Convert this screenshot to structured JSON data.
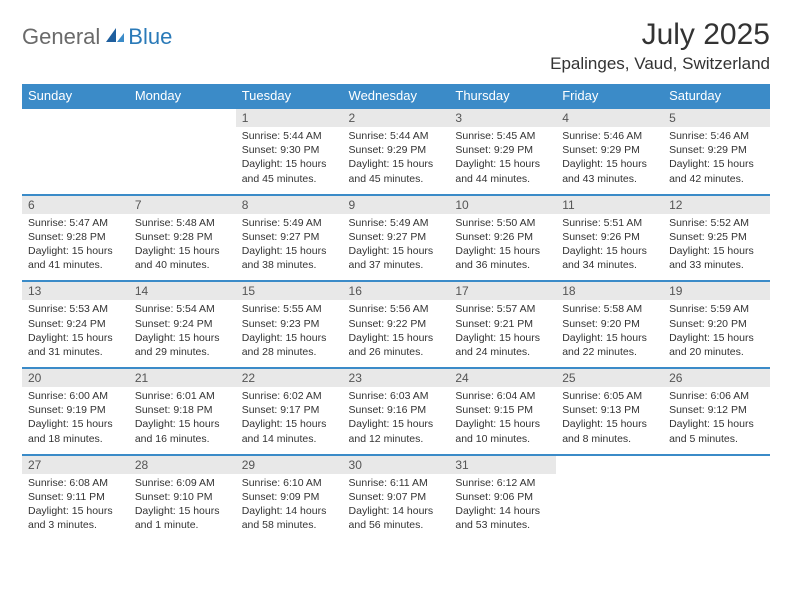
{
  "brand": {
    "part1": "General",
    "part2": "Blue"
  },
  "title": "July 2025",
  "location": "Epalinges, Vaud, Switzerland",
  "colors": {
    "header_bg": "#3b8bc8",
    "header_text": "#ffffff",
    "daynum_bg": "#e8e8e8",
    "border": "#3b8bc8",
    "brand_gray": "#6a6a6a",
    "brand_blue": "#2a7ab8"
  },
  "weekdays": [
    "Sunday",
    "Monday",
    "Tuesday",
    "Wednesday",
    "Thursday",
    "Friday",
    "Saturday"
  ],
  "weeks": [
    [
      null,
      null,
      {
        "n": "1",
        "sr": "5:44 AM",
        "ss": "9:30 PM",
        "dl": "15 hours and 45 minutes."
      },
      {
        "n": "2",
        "sr": "5:44 AM",
        "ss": "9:29 PM",
        "dl": "15 hours and 45 minutes."
      },
      {
        "n": "3",
        "sr": "5:45 AM",
        "ss": "9:29 PM",
        "dl": "15 hours and 44 minutes."
      },
      {
        "n": "4",
        "sr": "5:46 AM",
        "ss": "9:29 PM",
        "dl": "15 hours and 43 minutes."
      },
      {
        "n": "5",
        "sr": "5:46 AM",
        "ss": "9:29 PM",
        "dl": "15 hours and 42 minutes."
      }
    ],
    [
      {
        "n": "6",
        "sr": "5:47 AM",
        "ss": "9:28 PM",
        "dl": "15 hours and 41 minutes."
      },
      {
        "n": "7",
        "sr": "5:48 AM",
        "ss": "9:28 PM",
        "dl": "15 hours and 40 minutes."
      },
      {
        "n": "8",
        "sr": "5:49 AM",
        "ss": "9:27 PM",
        "dl": "15 hours and 38 minutes."
      },
      {
        "n": "9",
        "sr": "5:49 AM",
        "ss": "9:27 PM",
        "dl": "15 hours and 37 minutes."
      },
      {
        "n": "10",
        "sr": "5:50 AM",
        "ss": "9:26 PM",
        "dl": "15 hours and 36 minutes."
      },
      {
        "n": "11",
        "sr": "5:51 AM",
        "ss": "9:26 PM",
        "dl": "15 hours and 34 minutes."
      },
      {
        "n": "12",
        "sr": "5:52 AM",
        "ss": "9:25 PM",
        "dl": "15 hours and 33 minutes."
      }
    ],
    [
      {
        "n": "13",
        "sr": "5:53 AM",
        "ss": "9:24 PM",
        "dl": "15 hours and 31 minutes."
      },
      {
        "n": "14",
        "sr": "5:54 AM",
        "ss": "9:24 PM",
        "dl": "15 hours and 29 minutes."
      },
      {
        "n": "15",
        "sr": "5:55 AM",
        "ss": "9:23 PM",
        "dl": "15 hours and 28 minutes."
      },
      {
        "n": "16",
        "sr": "5:56 AM",
        "ss": "9:22 PM",
        "dl": "15 hours and 26 minutes."
      },
      {
        "n": "17",
        "sr": "5:57 AM",
        "ss": "9:21 PM",
        "dl": "15 hours and 24 minutes."
      },
      {
        "n": "18",
        "sr": "5:58 AM",
        "ss": "9:20 PM",
        "dl": "15 hours and 22 minutes."
      },
      {
        "n": "19",
        "sr": "5:59 AM",
        "ss": "9:20 PM",
        "dl": "15 hours and 20 minutes."
      }
    ],
    [
      {
        "n": "20",
        "sr": "6:00 AM",
        "ss": "9:19 PM",
        "dl": "15 hours and 18 minutes."
      },
      {
        "n": "21",
        "sr": "6:01 AM",
        "ss": "9:18 PM",
        "dl": "15 hours and 16 minutes."
      },
      {
        "n": "22",
        "sr": "6:02 AM",
        "ss": "9:17 PM",
        "dl": "15 hours and 14 minutes."
      },
      {
        "n": "23",
        "sr": "6:03 AM",
        "ss": "9:16 PM",
        "dl": "15 hours and 12 minutes."
      },
      {
        "n": "24",
        "sr": "6:04 AM",
        "ss": "9:15 PM",
        "dl": "15 hours and 10 minutes."
      },
      {
        "n": "25",
        "sr": "6:05 AM",
        "ss": "9:13 PM",
        "dl": "15 hours and 8 minutes."
      },
      {
        "n": "26",
        "sr": "6:06 AM",
        "ss": "9:12 PM",
        "dl": "15 hours and 5 minutes."
      }
    ],
    [
      {
        "n": "27",
        "sr": "6:08 AM",
        "ss": "9:11 PM",
        "dl": "15 hours and 3 minutes."
      },
      {
        "n": "28",
        "sr": "6:09 AM",
        "ss": "9:10 PM",
        "dl": "15 hours and 1 minute."
      },
      {
        "n": "29",
        "sr": "6:10 AM",
        "ss": "9:09 PM",
        "dl": "14 hours and 58 minutes."
      },
      {
        "n": "30",
        "sr": "6:11 AM",
        "ss": "9:07 PM",
        "dl": "14 hours and 56 minutes."
      },
      {
        "n": "31",
        "sr": "6:12 AM",
        "ss": "9:06 PM",
        "dl": "14 hours and 53 minutes."
      },
      null,
      null
    ]
  ],
  "labels": {
    "sunrise": "Sunrise:",
    "sunset": "Sunset:",
    "daylight": "Daylight:"
  }
}
